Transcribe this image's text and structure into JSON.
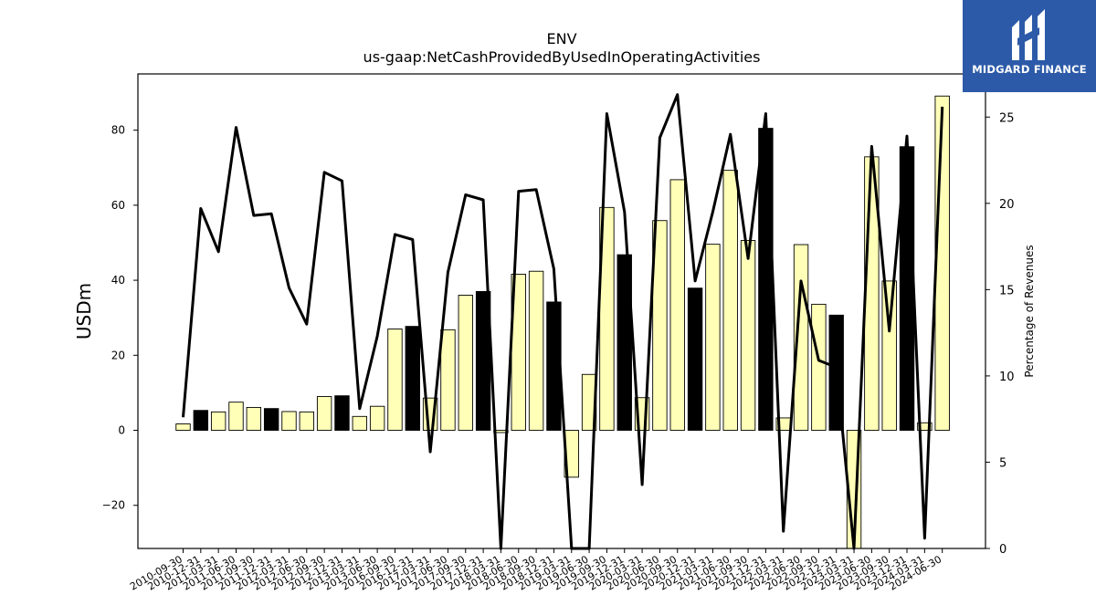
{
  "logo": {
    "text": "MIDGARD FINANCE",
    "icon": "midgard-logo-icon",
    "bg_color": "#2c5aa8"
  },
  "chart_data": {
    "type": "bar",
    "title": "ENV",
    "subtitle": "us-gaap:NetCashProvidedByUsedInOperatingActivities",
    "ylabel": "USDm",
    "ylabel_right": "Percentage of Revenues",
    "ylim": [
      -31.5,
      95
    ],
    "ylim_right": [
      0,
      27.5
    ],
    "yticks": [
      -20,
      0,
      20,
      40,
      60,
      80
    ],
    "yticks_right": [
      0,
      5,
      10,
      15,
      20,
      25
    ],
    "grid": false,
    "categories": [
      "2010-09-30",
      "2010-12-31",
      "2011-03-31",
      "2011-06-30",
      "2011-09-30",
      "2011-12-31",
      "2012-03-31",
      "2012-06-30",
      "2012-09-30",
      "2012-12-31",
      "2013-03-31",
      "2013-06-30",
      "2016-09-30",
      "2016-12-31",
      "2017-03-31",
      "2017-06-30",
      "2017-09-30",
      "2017-12-31",
      "2018-03-31",
      "2018-06-30",
      "2018-09-30",
      "2018-12-31",
      "2019-03-31",
      "2019-06-30",
      "2019-09-30",
      "2019-12-31",
      "2020-03-31",
      "2020-06-30",
      "2020-09-30",
      "2020-12-31",
      "2021-03-31",
      "2021-06-30",
      "2021-09-30",
      "2021-12-31",
      "2022-03-31",
      "2022-06-30",
      "2022-09-30",
      "2022-12-31",
      "2023-03-31",
      "2023-06-30",
      "2023-09-30",
      "2023-12-31",
      "2024-03-31",
      "2024-06-30"
    ],
    "series": [
      {
        "type": "bar",
        "values": [
          1.7,
          5.3,
          4.9,
          7.5,
          6.1,
          5.8,
          5.0,
          4.9,
          9.0,
          9.2,
          3.7,
          6.4,
          27.0,
          27.7,
          8.6,
          26.8,
          36.0,
          37.0,
          -0.6,
          41.6,
          42.4,
          34.2,
          -12.5,
          14.9,
          59.4,
          46.8,
          8.7,
          55.9,
          66.8,
          37.9,
          49.6,
          69.3,
          50.6,
          80.5,
          3.3,
          49.5,
          33.6,
          30.7,
          -31.5,
          72.9,
          39.8,
          75.6,
          2.0,
          89.1
        ],
        "colors": [
          "#ffffb8",
          "#000000",
          "#ffffb8",
          "#ffffb8",
          "#ffffb8",
          "#000000",
          "#ffffb8",
          "#ffffb8",
          "#ffffb8",
          "#000000",
          "#ffffb8",
          "#ffffb8",
          "#ffffb8",
          "#000000",
          "#ffffb8",
          "#ffffb8",
          "#ffffb8",
          "#000000",
          "#ffffb8",
          "#ffffb8",
          "#ffffb8",
          "#000000",
          "#ffffb8",
          "#ffffb8",
          "#ffffb8",
          "#000000",
          "#ffffb8",
          "#ffffb8",
          "#ffffb8",
          "#000000",
          "#ffffb8",
          "#ffffb8",
          "#ffffb8",
          "#000000",
          "#ffffb8",
          "#ffffb8",
          "#ffffb8",
          "#000000",
          "#ffffb8",
          "#ffffb8",
          "#ffffb8",
          "#000000",
          "#ffffb8",
          "#ffffb8"
        ]
      },
      {
        "type": "line",
        "axis": "right",
        "color": "#000000",
        "values": [
          7.6,
          19.7,
          17.2,
          24.4,
          19.3,
          19.4,
          15.1,
          13.0,
          21.8,
          21.3,
          8.1,
          12.3,
          18.2,
          17.9,
          5.6,
          16.0,
          20.5,
          20.2,
          0.0,
          20.7,
          20.8,
          16.2,
          0.0,
          0.0,
          25.2,
          19.5,
          3.7,
          23.8,
          26.3,
          15.5,
          19.5,
          24.0,
          16.8,
          25.2,
          1.0,
          15.5,
          10.9,
          10.5,
          0.0,
          23.3,
          12.6,
          23.9,
          0.6,
          25.6
        ]
      }
    ]
  }
}
